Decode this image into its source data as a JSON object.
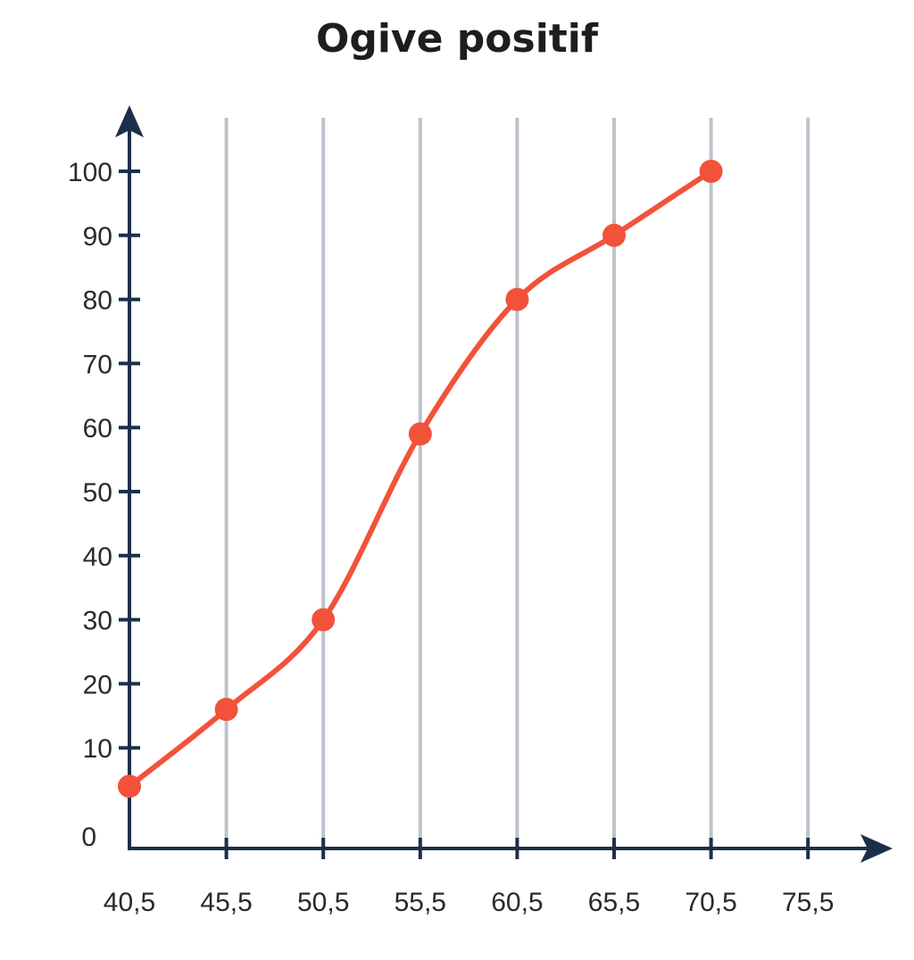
{
  "chart_data": {
    "type": "line",
    "title": "Ogive positif",
    "xlabel": "",
    "ylabel": "",
    "x_ticks": [
      "40,5",
      "45,5",
      "50,5",
      "55,5",
      "60,5",
      "65,5",
      "70,5",
      "75,5"
    ],
    "x_tick_values": [
      40.5,
      45.5,
      50.5,
      55.5,
      60.5,
      65.5,
      70.5,
      75.5
    ],
    "y_ticks": [
      "0",
      "10",
      "20",
      "30",
      "40",
      "50",
      "60",
      "70",
      "80",
      "90",
      "100"
    ],
    "y_tick_values": [
      0,
      10,
      20,
      30,
      40,
      50,
      60,
      70,
      80,
      90,
      100
    ],
    "xlim": [
      40.5,
      75.5
    ],
    "ylim": [
      0,
      100
    ],
    "grid": "vertical",
    "x": [
      40.5,
      45.5,
      50.5,
      55.5,
      60.5,
      65.5,
      70.5
    ],
    "series": [
      {
        "values": [
          4,
          16,
          30,
          59,
          80,
          90,
          100
        ]
      }
    ],
    "colors": {
      "line": "#f2523a",
      "axis": "#1c2f4a",
      "grid": "#bcc3cc"
    }
  }
}
